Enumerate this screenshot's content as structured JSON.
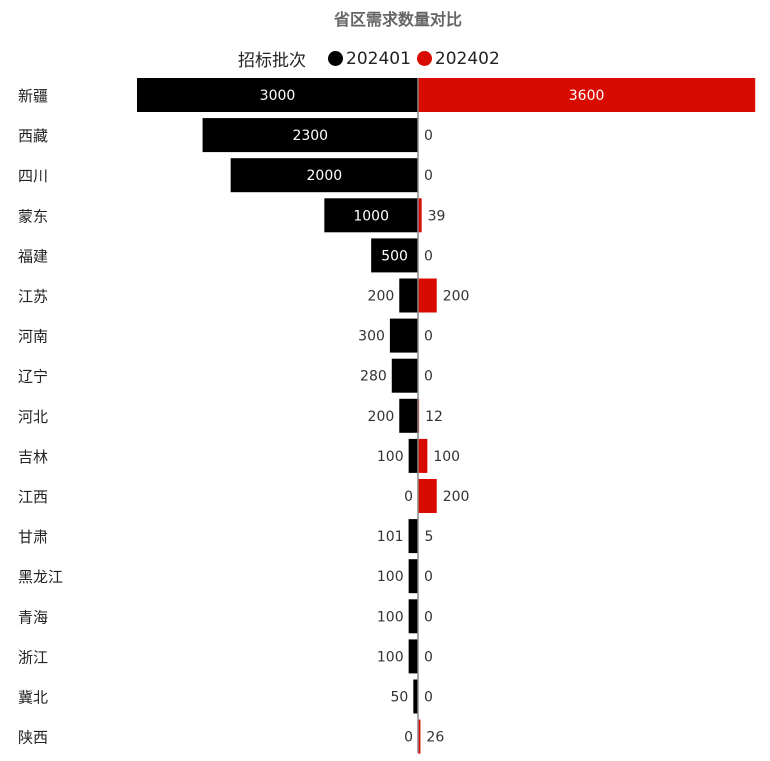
{
  "chart_data": {
    "type": "bar",
    "orientation": "horizontal-diverging",
    "title": "省区需求数量对比",
    "legend": {
      "title": "招标批次",
      "placement": "top"
    },
    "categories": [
      "新疆",
      "西藏",
      "四川",
      "蒙东",
      "福建",
      "江苏",
      "河南",
      "辽宁",
      "河北",
      "吉林",
      "江西",
      "甘肃",
      "黑龙江",
      "青海",
      "浙江",
      "冀北",
      "陕西"
    ],
    "series": [
      {
        "name": "202401",
        "color": "#000000",
        "direction": "left",
        "values": [
          3000,
          2300,
          2000,
          1000,
          500,
          200,
          300,
          280,
          200,
          100,
          0,
          101,
          100,
          100,
          100,
          50,
          0
        ]
      },
      {
        "name": "202402",
        "color": "#d90a00",
        "direction": "right",
        "values": [
          3600,
          0,
          0,
          39,
          0,
          200,
          0,
          0,
          12,
          100,
          200,
          5,
          0,
          0,
          0,
          0,
          26
        ]
      }
    ],
    "grid": false
  }
}
